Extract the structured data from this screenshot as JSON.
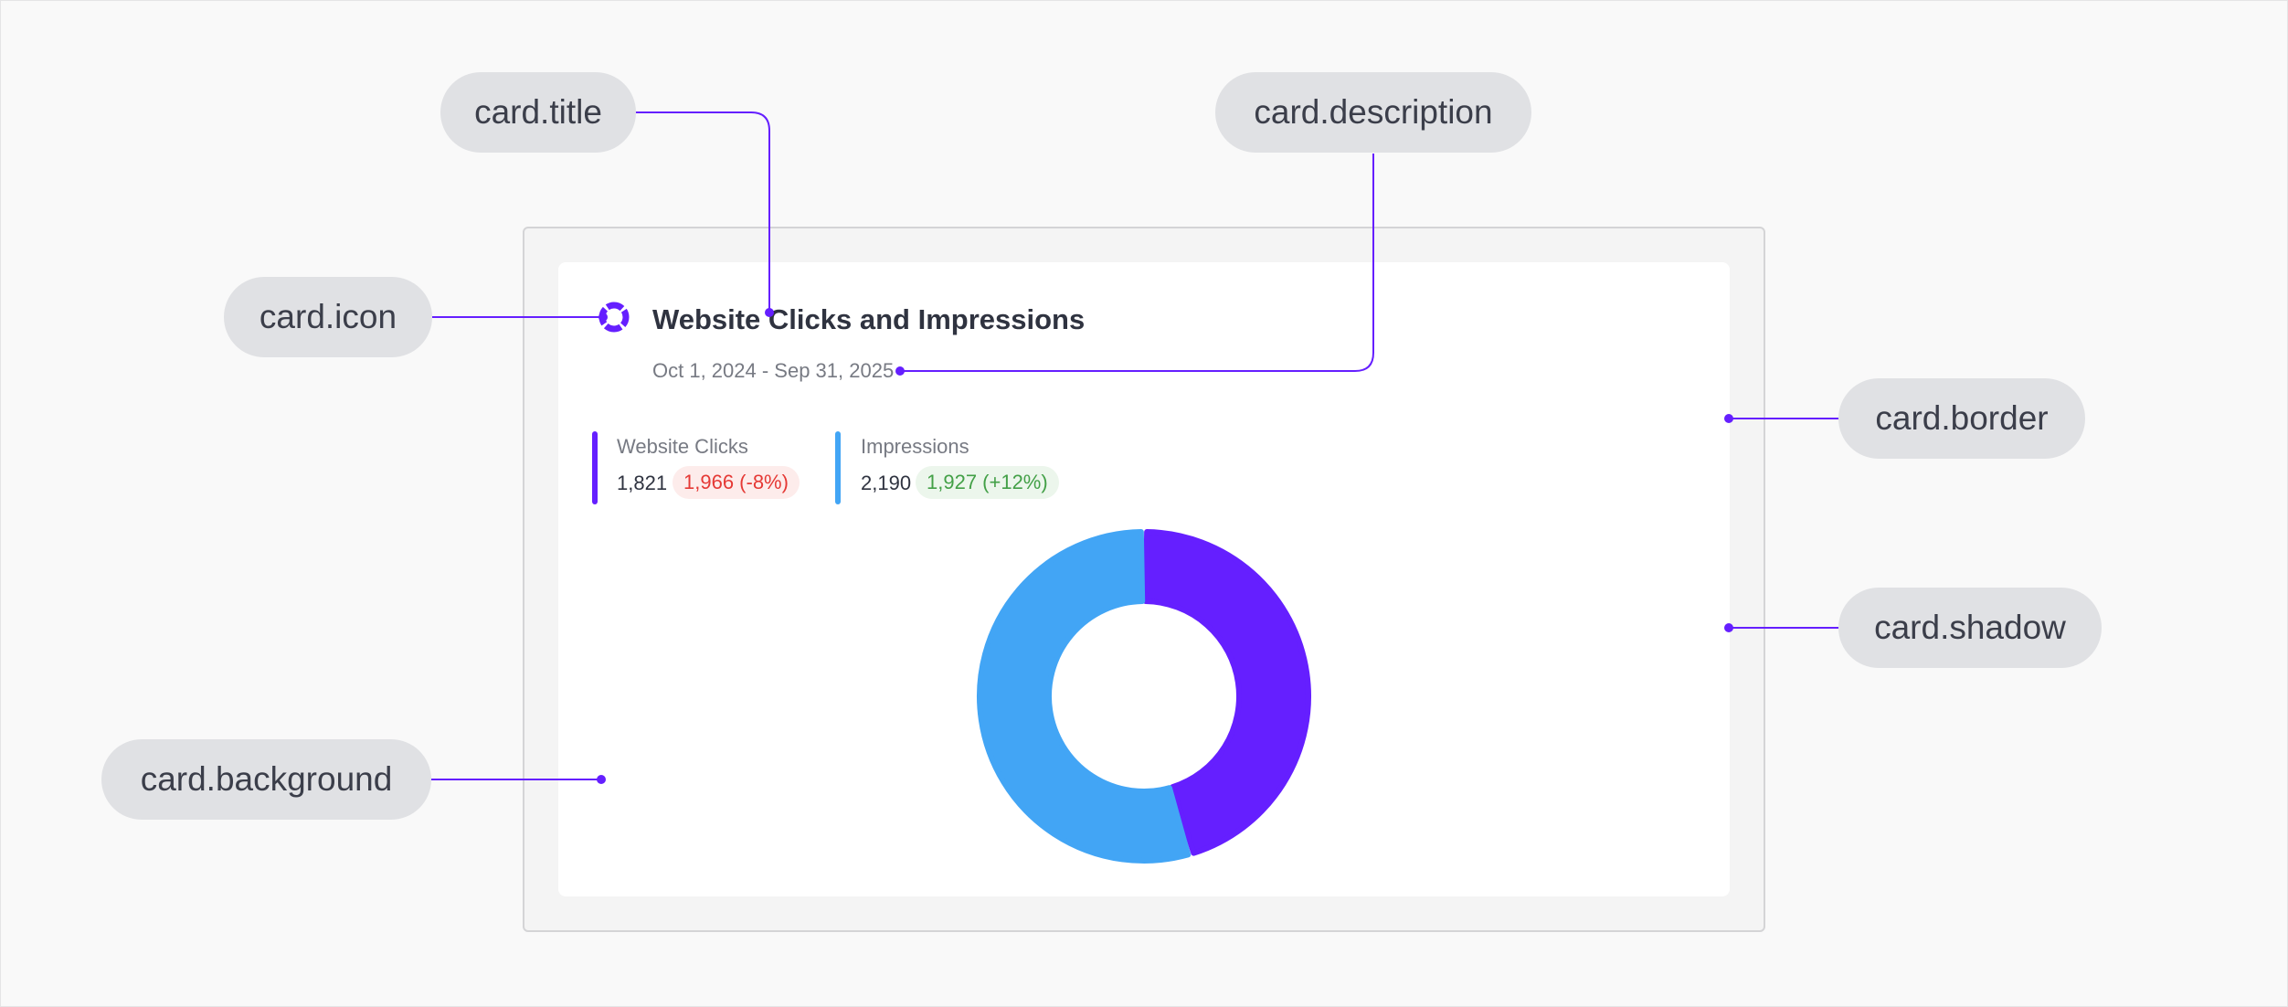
{
  "annotations": {
    "title": "card.title",
    "description": "card.description",
    "icon": "card.icon",
    "border": "card.border",
    "shadow": "card.shadow",
    "background": "card.background"
  },
  "colors": {
    "accent": "#651fff",
    "impressions": "#42a5f5",
    "negative": "#e53935",
    "positive": "#43a047"
  },
  "card": {
    "icon": "donut-chart-icon",
    "title": "Website Clicks and Impressions",
    "description": "Oct 1, 2024 - Sep 31, 2025",
    "metrics": [
      {
        "label": "Website Clicks",
        "value": "1,821",
        "delta": "1,966 (-8%)",
        "trend": "negative"
      },
      {
        "label": "Impressions",
        "value": "2,190",
        "delta": "1,927 (+12%)",
        "trend": "positive"
      }
    ]
  },
  "chart_data": {
    "type": "pie",
    "categories": [
      "Website Clicks",
      "Impressions"
    ],
    "values": [
      1821,
      2190
    ],
    "colors": [
      "#651fff",
      "#42a5f5"
    ]
  }
}
